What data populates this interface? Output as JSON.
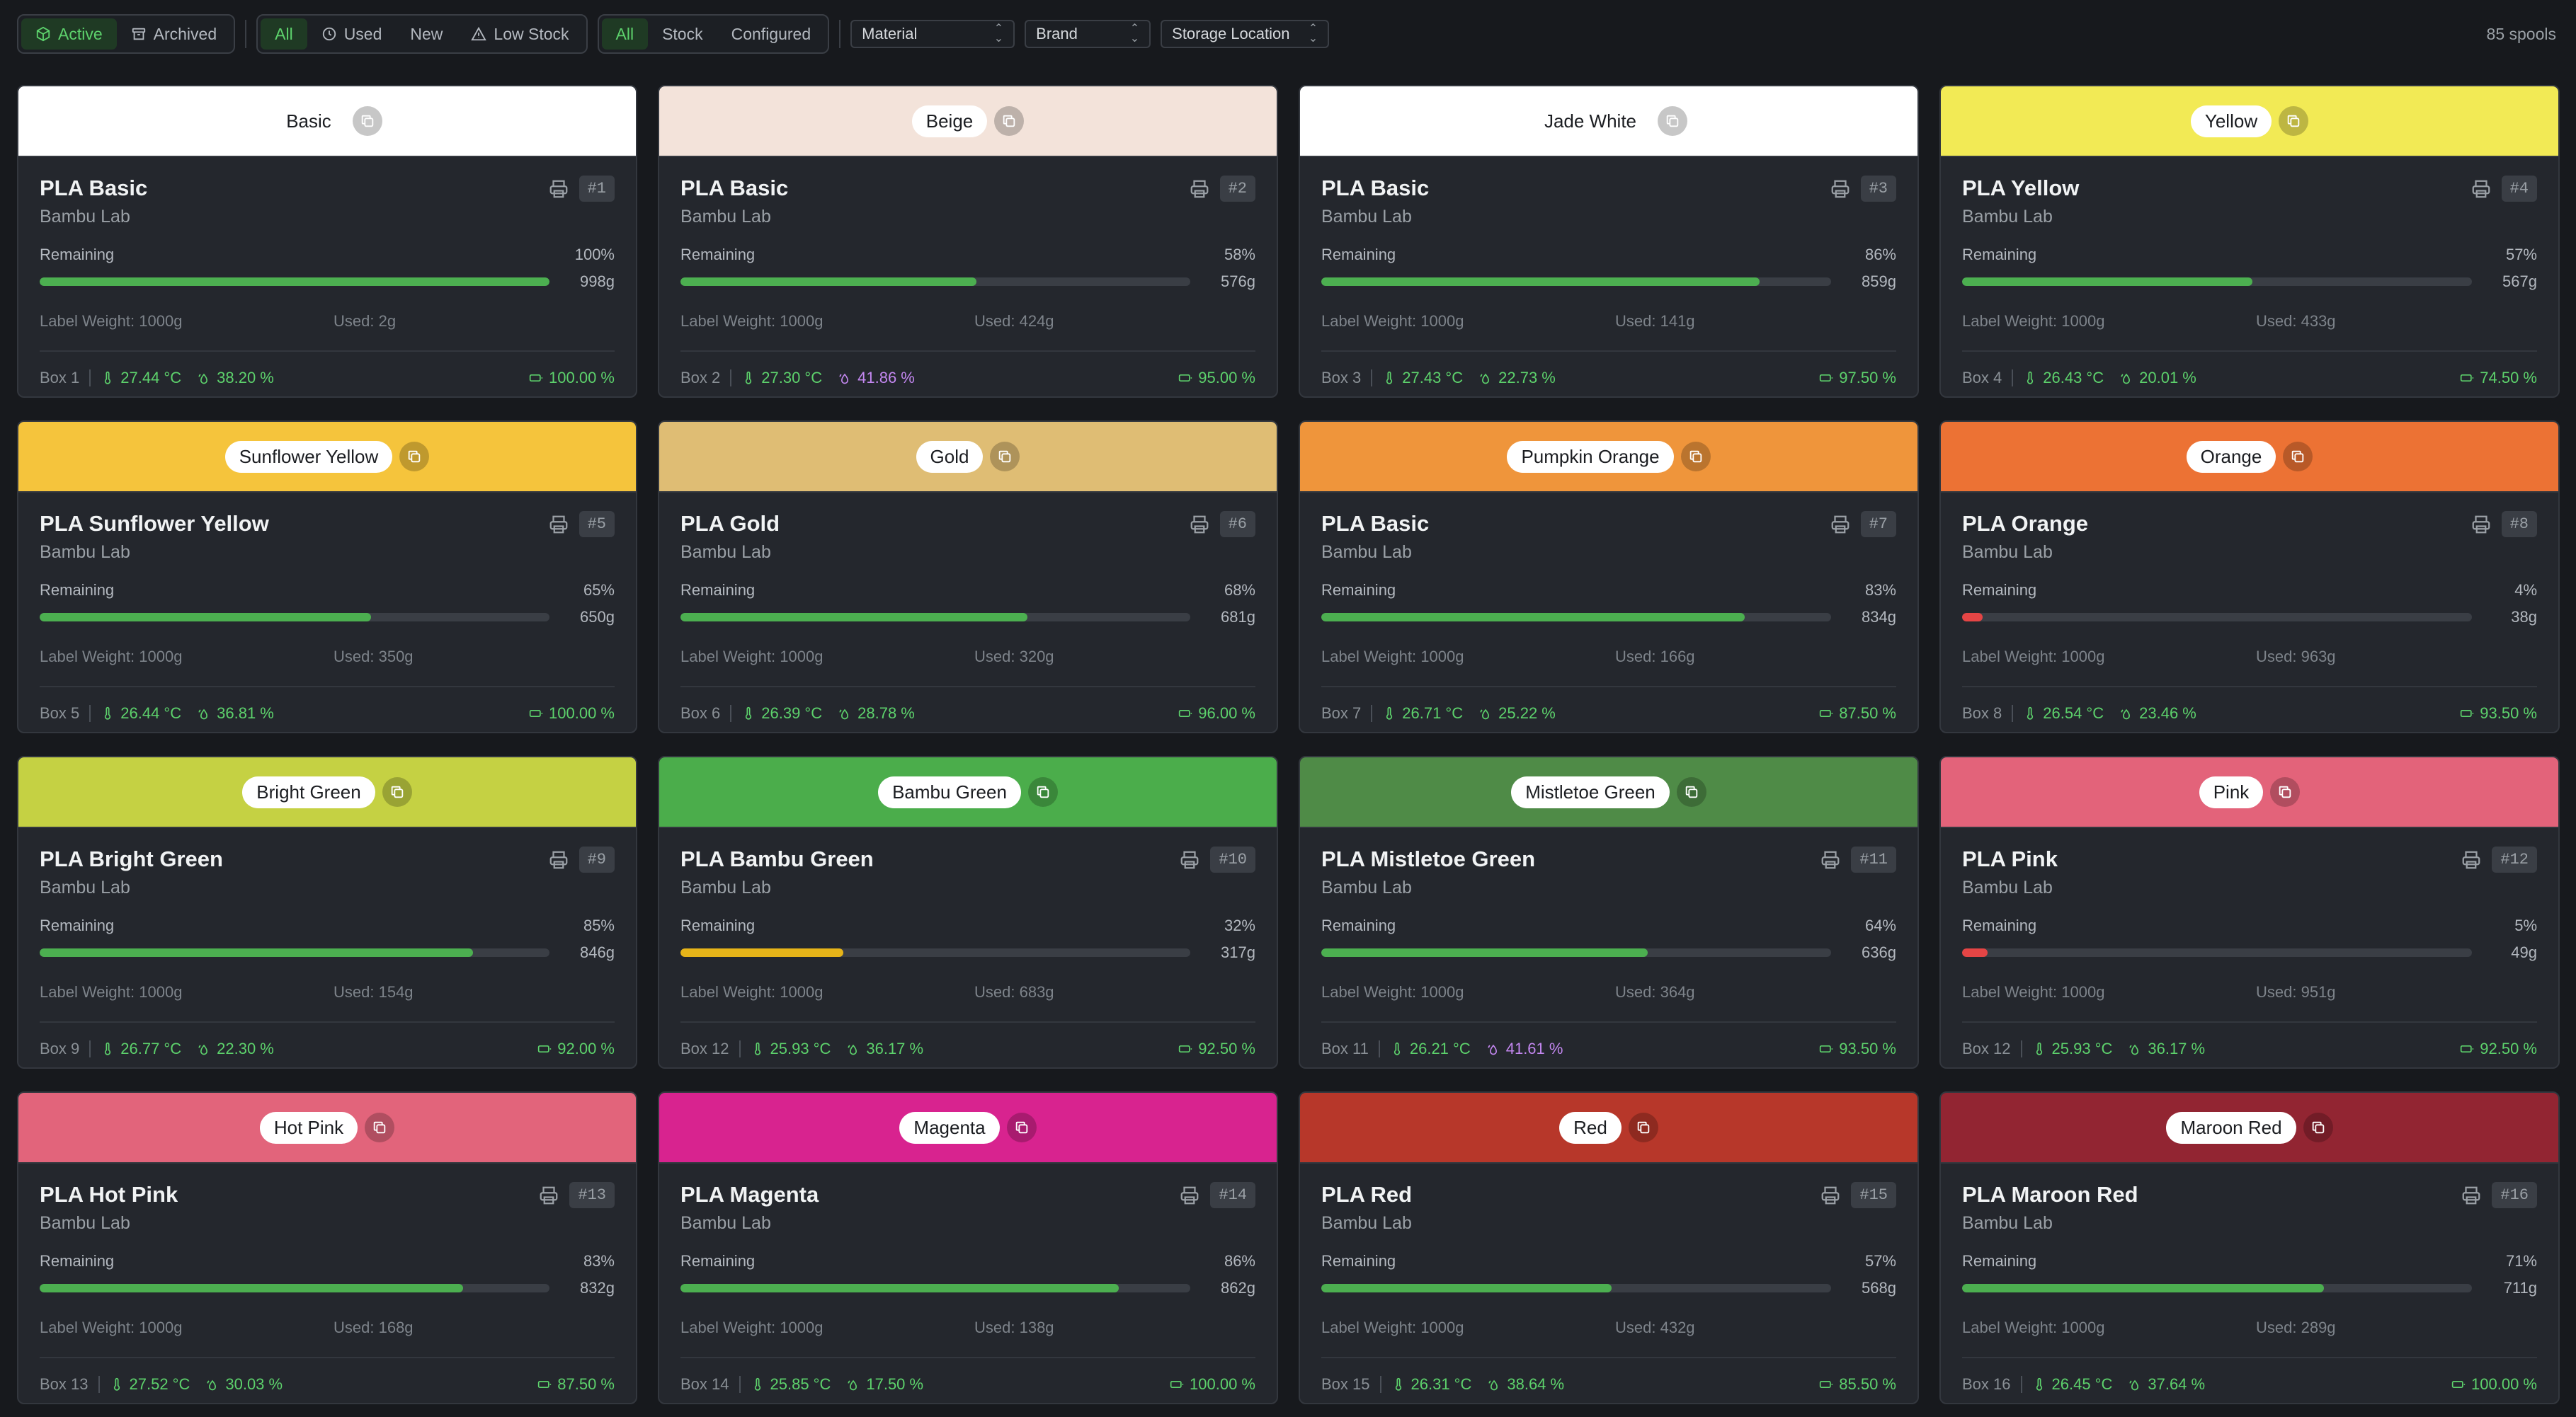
{
  "toolbar": {
    "status_filter": [
      {
        "label": "Active",
        "icon": "box-icon",
        "active": true
      },
      {
        "label": "Archived",
        "icon": "archive-icon",
        "active": false
      }
    ],
    "usage_filter": [
      {
        "label": "All",
        "icon": "",
        "active": true
      },
      {
        "label": "Used",
        "icon": "clock-icon",
        "active": false
      },
      {
        "label": "New",
        "icon": "",
        "active": false
      },
      {
        "label": "Low Stock",
        "icon": "warning-icon",
        "active": false
      }
    ],
    "type_filter": [
      {
        "label": "All",
        "active": true
      },
      {
        "label": "Stock",
        "active": false
      },
      {
        "label": "Configured",
        "active": false
      }
    ],
    "selects": {
      "material": "Material",
      "brand": "Brand",
      "storage": "Storage Location"
    },
    "count_label": "85 spools"
  },
  "labels": {
    "remaining": "Remaining",
    "label_weight_prefix": "Label Weight: ",
    "used_prefix": "Used: "
  },
  "colors": {
    "bar_good": "#4caf50",
    "bar_mid": "#e6b419",
    "bar_low": "#e54545",
    "accent_green": "#5dd26c",
    "accent_purple": "#c387f0"
  },
  "spools": [
    {
      "color_name": "Basic",
      "head_bg": "#ffffff",
      "pill": false,
      "name": "PLA Basic",
      "brand": "Bambu Lab",
      "id": "#1",
      "remaining_pct": "100%",
      "remaining_fraction": 1.0,
      "grams": "998g",
      "label_weight": "1000g",
      "used": "2g",
      "box": "Box 1",
      "temp": "27.44 °C",
      "humidity": "38.20 %",
      "humidity_warn": false,
      "fill": "100.00 %"
    },
    {
      "color_name": "Beige",
      "head_bg": "#f3e3da",
      "pill": true,
      "name": "PLA Basic",
      "brand": "Bambu Lab",
      "id": "#2",
      "remaining_pct": "58%",
      "remaining_fraction": 0.58,
      "grams": "576g",
      "label_weight": "1000g",
      "used": "424g",
      "box": "Box 2",
      "temp": "27.30 °C",
      "humidity": "41.86 %",
      "humidity_warn": true,
      "fill": "95.00 %"
    },
    {
      "color_name": "Jade White",
      "head_bg": "#ffffff",
      "pill": false,
      "name": "PLA Basic",
      "brand": "Bambu Lab",
      "id": "#3",
      "remaining_pct": "86%",
      "remaining_fraction": 0.86,
      "grams": "859g",
      "label_weight": "1000g",
      "used": "141g",
      "box": "Box 3",
      "temp": "27.43 °C",
      "humidity": "22.73 %",
      "humidity_warn": false,
      "fill": "97.50 %"
    },
    {
      "color_name": "Yellow",
      "head_bg": "#f2ea55",
      "pill": true,
      "name": "PLA Yellow",
      "brand": "Bambu Lab",
      "id": "#4",
      "remaining_pct": "57%",
      "remaining_fraction": 0.57,
      "grams": "567g",
      "label_weight": "1000g",
      "used": "433g",
      "box": "Box 4",
      "temp": "26.43 °C",
      "humidity": "20.01 %",
      "humidity_warn": false,
      "fill": "74.50 %"
    },
    {
      "color_name": "Sunflower Yellow",
      "head_bg": "#f5c43c",
      "pill": true,
      "name": "PLA Sunflower Yellow",
      "brand": "Bambu Lab",
      "id": "#5",
      "remaining_pct": "65%",
      "remaining_fraction": 0.65,
      "grams": "650g",
      "label_weight": "1000g",
      "used": "350g",
      "box": "Box 5",
      "temp": "26.44 °C",
      "humidity": "36.81 %",
      "humidity_warn": false,
      "fill": "100.00 %"
    },
    {
      "color_name": "Gold",
      "head_bg": "#dfbd74",
      "pill": true,
      "name": "PLA Gold",
      "brand": "Bambu Lab",
      "id": "#6",
      "remaining_pct": "68%",
      "remaining_fraction": 0.68,
      "grams": "681g",
      "label_weight": "1000g",
      "used": "320g",
      "box": "Box 6",
      "temp": "26.39 °C",
      "humidity": "28.78 %",
      "humidity_warn": false,
      "fill": "96.00 %"
    },
    {
      "color_name": "Pumpkin Orange",
      "head_bg": "#ef953b",
      "pill": true,
      "name": "PLA Basic",
      "brand": "Bambu Lab",
      "id": "#7",
      "remaining_pct": "83%",
      "remaining_fraction": 0.83,
      "grams": "834g",
      "label_weight": "1000g",
      "used": "166g",
      "box": "Box 7",
      "temp": "26.71 °C",
      "humidity": "25.22 %",
      "humidity_warn": false,
      "fill": "87.50 %"
    },
    {
      "color_name": "Orange",
      "head_bg": "#ec7234",
      "pill": true,
      "name": "PLA Orange",
      "brand": "Bambu Lab",
      "id": "#8",
      "remaining_pct": "4%",
      "remaining_fraction": 0.04,
      "grams": "38g",
      "label_weight": "1000g",
      "used": "963g",
      "box": "Box 8",
      "temp": "26.54 °C",
      "humidity": "23.46 %",
      "humidity_warn": false,
      "fill": "93.50 %"
    },
    {
      "color_name": "Bright Green",
      "head_bg": "#c5d143",
      "pill": true,
      "name": "PLA Bright Green",
      "brand": "Bambu Lab",
      "id": "#9",
      "remaining_pct": "85%",
      "remaining_fraction": 0.85,
      "grams": "846g",
      "label_weight": "1000g",
      "used": "154g",
      "box": "Box 9",
      "temp": "26.77 °C",
      "humidity": "22.30 %",
      "humidity_warn": false,
      "fill": "92.00 %"
    },
    {
      "color_name": "Bambu Green",
      "head_bg": "#4bad4b",
      "pill": true,
      "name": "PLA Bambu Green",
      "brand": "Bambu Lab",
      "id": "#10",
      "remaining_pct": "32%",
      "remaining_fraction": 0.32,
      "grams": "317g",
      "label_weight": "1000g",
      "used": "683g",
      "box": "Box 12",
      "temp": "25.93 °C",
      "humidity": "36.17 %",
      "humidity_warn": false,
      "fill": "92.50 %"
    },
    {
      "color_name": "Mistletoe Green",
      "head_bg": "#4f8b47",
      "pill": true,
      "name": "PLA Mistletoe Green",
      "brand": "Bambu Lab",
      "id": "#11",
      "remaining_pct": "64%",
      "remaining_fraction": 0.64,
      "grams": "636g",
      "label_weight": "1000g",
      "used": "364g",
      "box": "Box 11",
      "temp": "26.21 °C",
      "humidity": "41.61 %",
      "humidity_warn": true,
      "fill": "93.50 %"
    },
    {
      "color_name": "Pink",
      "head_bg": "#e3637a",
      "pill": true,
      "name": "PLA Pink",
      "brand": "Bambu Lab",
      "id": "#12",
      "remaining_pct": "5%",
      "remaining_fraction": 0.05,
      "grams": "49g",
      "label_weight": "1000g",
      "used": "951g",
      "box": "Box 12",
      "temp": "25.93 °C",
      "humidity": "36.17 %",
      "humidity_warn": false,
      "fill": "92.50 %"
    },
    {
      "color_name": "Hot Pink",
      "head_bg": "#e2647b",
      "pill": true,
      "name": "PLA Hot Pink",
      "brand": "Bambu Lab",
      "id": "#13",
      "remaining_pct": "83%",
      "remaining_fraction": 0.83,
      "grams": "832g",
      "label_weight": "1000g",
      "used": "168g",
      "box": "Box 13",
      "temp": "27.52 °C",
      "humidity": "30.03 %",
      "humidity_warn": false,
      "fill": "87.50 %"
    },
    {
      "color_name": "Magenta",
      "head_bg": "#d8238f",
      "pill": true,
      "name": "PLA Magenta",
      "brand": "Bambu Lab",
      "id": "#14",
      "remaining_pct": "86%",
      "remaining_fraction": 0.86,
      "grams": "862g",
      "label_weight": "1000g",
      "used": "138g",
      "box": "Box 14",
      "temp": "25.85 °C",
      "humidity": "17.50 %",
      "humidity_warn": false,
      "fill": "100.00 %"
    },
    {
      "color_name": "Red",
      "head_bg": "#b7372a",
      "pill": true,
      "name": "PLA Red",
      "brand": "Bambu Lab",
      "id": "#15",
      "remaining_pct": "57%",
      "remaining_fraction": 0.57,
      "grams": "568g",
      "label_weight": "1000g",
      "used": "432g",
      "box": "Box 15",
      "temp": "26.31 °C",
      "humidity": "38.64 %",
      "humidity_warn": false,
      "fill": "85.50 %"
    },
    {
      "color_name": "Maroon Red",
      "head_bg": "#922532",
      "pill": true,
      "name": "PLA Maroon Red",
      "brand": "Bambu Lab",
      "id": "#16",
      "remaining_pct": "71%",
      "remaining_fraction": 0.71,
      "grams": "711g",
      "label_weight": "1000g",
      "used": "289g",
      "box": "Box 16",
      "temp": "26.45 °C",
      "humidity": "37.64 %",
      "humidity_warn": false,
      "fill": "100.00 %"
    }
  ]
}
